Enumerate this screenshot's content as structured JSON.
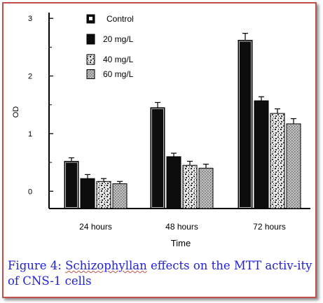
{
  "chart_data": {
    "type": "bar",
    "categories": [
      "24 hours",
      "48 hours",
      "72 hours"
    ],
    "series": [
      {
        "name": "Control",
        "values": [
          0.52,
          1.45,
          2.62
        ],
        "errors": [
          0.06,
          0.09,
          0.12
        ],
        "pattern": "solid-outlined",
        "color": "#111111"
      },
      {
        "name": "20 mg/L",
        "values": [
          0.22,
          0.6,
          1.57
        ],
        "errors": [
          0.07,
          0.06,
          0.07
        ],
        "pattern": "solid",
        "color": "#111111"
      },
      {
        "name": "40 mg/L",
        "values": [
          0.17,
          0.45,
          1.35
        ],
        "errors": [
          0.05,
          0.07,
          0.08
        ],
        "pattern": "speckled",
        "color": "#888888"
      },
      {
        "name": "60 mg/L",
        "values": [
          0.13,
          0.4,
          1.17
        ],
        "errors": [
          0.04,
          0.07,
          0.09
        ],
        "pattern": "dotted-grey",
        "color": "#999999"
      }
    ],
    "xlabel": "Time",
    "ylabel": "OD",
    "ylim": [
      -0.3,
      3.1
    ],
    "yticks": [
      "0",
      "1",
      "2",
      "3"
    ],
    "yticks_values": [
      0,
      1,
      2,
      3
    ],
    "legend_position": "top-left",
    "grid": false
  },
  "caption": {
    "prefix": "Figure 4: ",
    "highlight": "Schizophyllan",
    "rest": " effects on the MTT activ-ity of CNS-1 cells"
  }
}
